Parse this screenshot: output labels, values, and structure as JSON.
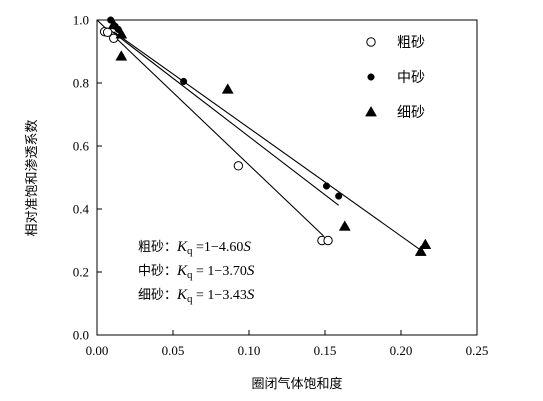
{
  "chart_data": {
    "type": "scatter",
    "title": "",
    "xlabel": "圈闭气体饱和度",
    "ylabel": "相对准饱和渗透系数",
    "xlim": [
      0,
      0.25
    ],
    "ylim": [
      0,
      1.0
    ],
    "xticks": [
      "0.00",
      "0.05",
      "0.10",
      "0.15",
      "0.20",
      "0.25"
    ],
    "yticks": [
      "0.0",
      "0.2",
      "0.4",
      "0.6",
      "0.8",
      "1.0"
    ],
    "grid": false,
    "legend_position": "top-right",
    "series": [
      {
        "name": "粗砂",
        "marker": "open-circle",
        "points": [
          [
            0.005,
            0.963
          ],
          [
            0.007,
            0.961
          ],
          [
            0.011,
            0.942
          ],
          [
            0.093,
            0.537
          ],
          [
            0.148,
            0.3
          ],
          [
            0.152,
            0.3
          ]
        ],
        "fit": {
          "intercept": 1,
          "slope": -4.6,
          "x_range": [
            0.0,
            0.149
          ]
        }
      },
      {
        "name": "中砂",
        "marker": "filled-circle",
        "points": [
          [
            0.009,
            1.0
          ],
          [
            0.012,
            0.98
          ],
          [
            0.014,
            0.97
          ],
          [
            0.057,
            0.805
          ],
          [
            0.151,
            0.473
          ],
          [
            0.159,
            0.441
          ]
        ],
        "fit": {
          "intercept": 1,
          "slope": -3.7,
          "x_range": [
            0.009,
            0.159
          ]
        }
      },
      {
        "name": "细砂",
        "marker": "filled-triangle",
        "points": [
          [
            0.011,
            0.985
          ],
          [
            0.016,
            0.955
          ],
          [
            0.016,
            0.885
          ],
          [
            0.086,
            0.78
          ],
          [
            0.163,
            0.345
          ],
          [
            0.213,
            0.265
          ],
          [
            0.216,
            0.287
          ]
        ],
        "fit": {
          "intercept": 1,
          "slope": -3.43,
          "x_range": [
            0.011,
            0.213
          ]
        }
      }
    ],
    "annotations": [
      {
        "label": "粗砂：",
        "k": "K",
        "sub": "q",
        "rhs": " =1−4.60",
        "var": "S"
      },
      {
        "label": "中砂：",
        "k": "K",
        "sub": "q",
        "rhs": " = 1−3.70",
        "var": "S"
      },
      {
        "label": "细砂：",
        "k": "K",
        "sub": "q",
        "rhs": " = 1−3.43",
        "var": "S"
      }
    ]
  }
}
